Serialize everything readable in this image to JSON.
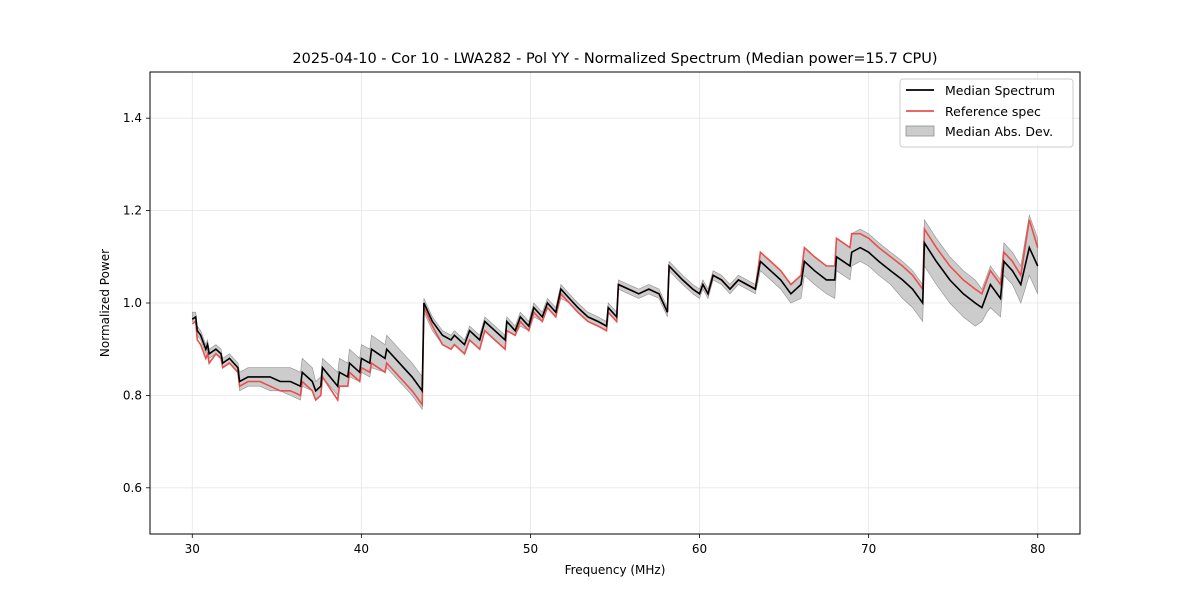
{
  "chart_data": {
    "type": "line",
    "title": "2025-04-10 - Cor 10 - LWA282 - Pol YY - Normalized Spectrum (Median power=15.7 CPU)",
    "xlabel": "Frequency (MHz)",
    "ylabel": "Normalized Power",
    "xlim": [
      27.5,
      82.5
    ],
    "ylim": [
      0.5,
      1.5
    ],
    "xticks": [
      30,
      40,
      50,
      60,
      70,
      80
    ],
    "yticks": [
      0.6,
      0.8,
      1.0,
      1.2,
      1.4
    ],
    "xtick_labels": [
      "30",
      "40",
      "50",
      "60",
      "70",
      "80"
    ],
    "ytick_labels": [
      "0.6",
      "0.8",
      "1.0",
      "1.2",
      "1.4"
    ],
    "grid": true,
    "legend_position": "top-right",
    "colors": {
      "median": "#000000",
      "reference": "#e8504e",
      "band": "#b0b0b0"
    },
    "series": [
      {
        "name": "Median Spectrum",
        "style": "line",
        "x": [
          30.0,
          30.2,
          30.3,
          30.5,
          30.6,
          30.8,
          30.9,
          31.0,
          31.4,
          31.7,
          31.8,
          32.2,
          32.7,
          32.8,
          33.3,
          34.0,
          34.6,
          35.2,
          35.8,
          36.4,
          36.5,
          37.1,
          37.3,
          37.6,
          37.7,
          38.6,
          38.7,
          39.2,
          39.3,
          39.9,
          40.0,
          40.5,
          40.6,
          41.4,
          41.5,
          42.0,
          42.5,
          43.0,
          43.6,
          43.7,
          44.2,
          44.8,
          45.3,
          45.5,
          46.1,
          46.4,
          47.0,
          47.3,
          47.9,
          48.5,
          48.6,
          49.1,
          49.4,
          49.9,
          50.2,
          50.7,
          51.0,
          51.5,
          51.8,
          52.3,
          52.8,
          53.4,
          54.0,
          54.5,
          54.6,
          55.1,
          55.2,
          55.8,
          56.4,
          57.0,
          57.6,
          58.1,
          58.2,
          59.0,
          59.6,
          60.0,
          60.2,
          60.5,
          60.8,
          61.3,
          61.8,
          62.3,
          62.8,
          63.3,
          63.6,
          64.2,
          64.8,
          65.4,
          66.0,
          66.2,
          66.8,
          67.5,
          68.0,
          68.1,
          68.5,
          68.9,
          69.0,
          69.5,
          70.0,
          70.6,
          71.3,
          72.0,
          72.6,
          73.2,
          73.3,
          74.0,
          74.8,
          75.6,
          76.3,
          76.7,
          77.0,
          77.2,
          77.8,
          78.0,
          78.5,
          79.0,
          79.5,
          80.0
        ],
        "y": [
          0.965,
          0.97,
          0.94,
          0.93,
          0.92,
          0.9,
          0.91,
          0.89,
          0.9,
          0.89,
          0.87,
          0.88,
          0.86,
          0.83,
          0.84,
          0.84,
          0.84,
          0.83,
          0.83,
          0.82,
          0.85,
          0.83,
          0.81,
          0.82,
          0.86,
          0.82,
          0.85,
          0.84,
          0.87,
          0.85,
          0.88,
          0.87,
          0.9,
          0.88,
          0.9,
          0.88,
          0.86,
          0.84,
          0.81,
          1.0,
          0.96,
          0.93,
          0.92,
          0.93,
          0.91,
          0.94,
          0.92,
          0.96,
          0.94,
          0.92,
          0.96,
          0.94,
          0.97,
          0.95,
          0.99,
          0.97,
          1.0,
          0.98,
          1.03,
          1.01,
          0.99,
          0.97,
          0.96,
          0.95,
          0.99,
          0.97,
          1.04,
          1.03,
          1.02,
          1.03,
          1.02,
          0.98,
          1.08,
          1.05,
          1.03,
          1.02,
          1.04,
          1.02,
          1.06,
          1.05,
          1.03,
          1.05,
          1.04,
          1.03,
          1.09,
          1.07,
          1.05,
          1.02,
          1.04,
          1.09,
          1.07,
          1.05,
          1.05,
          1.1,
          1.09,
          1.08,
          1.11,
          1.12,
          1.11,
          1.09,
          1.07,
          1.05,
          1.03,
          1.0,
          1.13,
          1.09,
          1.05,
          1.02,
          1.0,
          0.99,
          1.02,
          1.04,
          1.01,
          1.09,
          1.07,
          1.04,
          1.12,
          1.08
        ],
        "color": "#000000"
      },
      {
        "name": "Reference spec",
        "style": "line",
        "x": [
          30.0,
          30.2,
          30.3,
          30.5,
          30.6,
          30.8,
          30.9,
          31.0,
          31.4,
          31.7,
          31.8,
          32.2,
          32.7,
          32.8,
          33.3,
          34.0,
          34.6,
          35.2,
          35.8,
          36.4,
          36.5,
          37.1,
          37.3,
          37.6,
          37.7,
          38.6,
          38.7,
          39.2,
          39.3,
          39.9,
          40.0,
          40.5,
          40.6,
          41.4,
          41.5,
          42.0,
          42.5,
          43.0,
          43.6,
          43.7,
          44.2,
          44.8,
          45.3,
          45.5,
          46.1,
          46.4,
          47.0,
          47.3,
          47.9,
          48.5,
          48.6,
          49.1,
          49.4,
          49.9,
          50.2,
          50.7,
          51.0,
          51.5,
          51.8,
          52.3,
          52.8,
          53.4,
          54.0,
          54.5,
          54.6,
          55.1,
          55.2,
          55.8,
          56.4,
          57.0,
          57.6,
          58.1,
          58.2,
          59.0,
          59.6,
          60.0,
          60.2,
          60.5,
          60.8,
          61.3,
          61.8,
          62.3,
          62.8,
          63.3,
          63.6,
          64.2,
          64.8,
          65.4,
          66.0,
          66.2,
          66.8,
          67.5,
          68.0,
          68.1,
          68.5,
          68.9,
          69.0,
          69.5,
          70.0,
          70.6,
          71.3,
          72.0,
          72.6,
          73.2,
          73.3,
          74.0,
          74.8,
          75.6,
          76.3,
          76.7,
          77.0,
          77.2,
          77.8,
          78.0,
          78.5,
          79.0,
          79.5,
          80.0
        ],
        "y": [
          0.955,
          0.96,
          0.92,
          0.91,
          0.9,
          0.88,
          0.89,
          0.87,
          0.89,
          0.88,
          0.86,
          0.87,
          0.85,
          0.82,
          0.83,
          0.83,
          0.82,
          0.81,
          0.81,
          0.8,
          0.83,
          0.81,
          0.79,
          0.8,
          0.84,
          0.79,
          0.82,
          0.82,
          0.85,
          0.83,
          0.86,
          0.85,
          0.87,
          0.85,
          0.87,
          0.85,
          0.83,
          0.81,
          0.78,
          0.99,
          0.95,
          0.91,
          0.9,
          0.91,
          0.89,
          0.92,
          0.9,
          0.94,
          0.92,
          0.9,
          0.94,
          0.93,
          0.96,
          0.94,
          0.98,
          0.96,
          0.99,
          0.97,
          1.02,
          1.0,
          0.98,
          0.96,
          0.95,
          0.94,
          0.98,
          0.96,
          1.04,
          1.03,
          1.02,
          1.03,
          1.02,
          0.98,
          1.08,
          1.05,
          1.03,
          1.02,
          1.04,
          1.02,
          1.06,
          1.05,
          1.03,
          1.05,
          1.04,
          1.03,
          1.11,
          1.09,
          1.07,
          1.04,
          1.06,
          1.12,
          1.1,
          1.08,
          1.08,
          1.14,
          1.13,
          1.12,
          1.15,
          1.15,
          1.14,
          1.12,
          1.1,
          1.08,
          1.06,
          1.03,
          1.16,
          1.12,
          1.08,
          1.05,
          1.03,
          1.02,
          1.05,
          1.07,
          1.04,
          1.11,
          1.09,
          1.06,
          1.18,
          1.12
        ],
        "color": "#e8504e"
      },
      {
        "name": "Median Abs. Dev.",
        "style": "band",
        "x": [
          30.0,
          30.2,
          30.3,
          30.5,
          30.6,
          30.8,
          30.9,
          31.0,
          31.4,
          31.7,
          31.8,
          32.2,
          32.7,
          32.8,
          33.3,
          34.0,
          34.6,
          35.2,
          35.8,
          36.4,
          36.5,
          37.1,
          37.3,
          37.6,
          37.7,
          38.6,
          38.7,
          39.2,
          39.3,
          39.9,
          40.0,
          40.5,
          40.6,
          41.4,
          41.5,
          42.0,
          42.5,
          43.0,
          43.6,
          43.7,
          44.2,
          44.8,
          45.3,
          45.5,
          46.1,
          46.4,
          47.0,
          47.3,
          47.9,
          48.5,
          48.6,
          49.1,
          49.4,
          49.9,
          50.2,
          50.7,
          51.0,
          51.5,
          51.8,
          52.3,
          52.8,
          53.4,
          54.0,
          54.5,
          54.6,
          55.1,
          55.2,
          55.8,
          56.4,
          57.0,
          57.6,
          58.1,
          58.2,
          59.0,
          59.6,
          60.0,
          60.2,
          60.5,
          60.8,
          61.3,
          61.8,
          62.3,
          62.8,
          63.3,
          63.6,
          64.2,
          64.8,
          65.4,
          66.0,
          66.2,
          66.8,
          67.5,
          68.0,
          68.1,
          68.5,
          68.9,
          69.0,
          69.5,
          70.0,
          70.6,
          71.3,
          72.0,
          72.6,
          73.2,
          73.3,
          74.0,
          74.8,
          75.6,
          76.3,
          76.7,
          77.0,
          77.2,
          77.8,
          78.0,
          78.5,
          79.0,
          79.5,
          80.0
        ],
        "lower": [
          0.96,
          0.96,
          0.93,
          0.92,
          0.91,
          0.89,
          0.9,
          0.88,
          0.89,
          0.88,
          0.86,
          0.87,
          0.85,
          0.81,
          0.82,
          0.82,
          0.81,
          0.81,
          0.8,
          0.79,
          0.82,
          0.81,
          0.79,
          0.8,
          0.84,
          0.8,
          0.82,
          0.82,
          0.84,
          0.83,
          0.85,
          0.84,
          0.86,
          0.85,
          0.86,
          0.84,
          0.82,
          0.8,
          0.77,
          0.98,
          0.94,
          0.91,
          0.9,
          0.91,
          0.89,
          0.92,
          0.9,
          0.94,
          0.92,
          0.9,
          0.94,
          0.93,
          0.95,
          0.94,
          0.97,
          0.96,
          0.99,
          0.97,
          1.01,
          1.0,
          0.98,
          0.96,
          0.95,
          0.94,
          0.98,
          0.96,
          1.03,
          1.02,
          1.01,
          1.02,
          1.01,
          0.97,
          1.07,
          1.04,
          1.02,
          1.01,
          1.03,
          1.01,
          1.05,
          1.04,
          1.02,
          1.04,
          1.03,
          1.02,
          1.07,
          1.05,
          1.03,
          1.0,
          1.01,
          1.06,
          1.04,
          1.02,
          1.01,
          1.07,
          1.06,
          1.05,
          1.08,
          1.09,
          1.08,
          1.06,
          1.04,
          1.01,
          0.99,
          0.96,
          1.08,
          1.04,
          1.0,
          0.97,
          0.95,
          0.96,
          0.98,
          0.99,
          0.97,
          1.06,
          1.04,
          1.0,
          1.06,
          1.02
        ],
        "upper": [
          0.98,
          0.98,
          0.95,
          0.94,
          0.93,
          0.91,
          0.92,
          0.9,
          0.91,
          0.9,
          0.88,
          0.89,
          0.87,
          0.85,
          0.86,
          0.86,
          0.86,
          0.86,
          0.86,
          0.85,
          0.88,
          0.86,
          0.83,
          0.84,
          0.88,
          0.85,
          0.88,
          0.87,
          0.9,
          0.88,
          0.91,
          0.9,
          0.93,
          0.91,
          0.93,
          0.91,
          0.89,
          0.87,
          0.84,
          1.01,
          0.97,
          0.94,
          0.93,
          0.94,
          0.92,
          0.95,
          0.93,
          0.97,
          0.95,
          0.93,
          0.97,
          0.95,
          0.98,
          0.96,
          1.0,
          0.98,
          1.01,
          0.99,
          1.04,
          1.02,
          1.0,
          0.98,
          0.97,
          0.96,
          1.0,
          0.98,
          1.05,
          1.04,
          1.03,
          1.04,
          1.03,
          0.99,
          1.09,
          1.06,
          1.04,
          1.03,
          1.05,
          1.03,
          1.07,
          1.06,
          1.04,
          1.06,
          1.05,
          1.04,
          1.11,
          1.09,
          1.07,
          1.04,
          1.06,
          1.12,
          1.1,
          1.08,
          1.08,
          1.14,
          1.13,
          1.12,
          1.15,
          1.16,
          1.15,
          1.13,
          1.11,
          1.09,
          1.07,
          1.04,
          1.18,
          1.14,
          1.1,
          1.07,
          1.05,
          1.03,
          1.06,
          1.08,
          1.05,
          1.13,
          1.11,
          1.08,
          1.19,
          1.14
        ],
        "color": "#b0b0b0"
      }
    ]
  }
}
